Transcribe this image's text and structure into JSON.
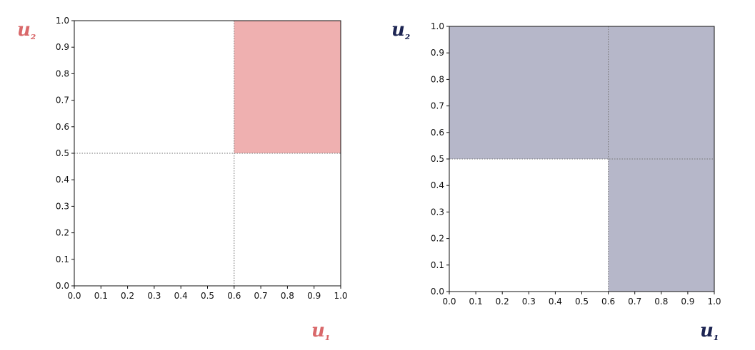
{
  "chart_data": [
    {
      "type": "area",
      "xlabel": "u₁",
      "ylabel": "u₂",
      "xlim": [
        0.0,
        1.0
      ],
      "ylim": [
        0.0,
        1.0
      ],
      "xticks": [
        "0.0",
        "0.1",
        "0.2",
        "0.3",
        "0.4",
        "0.5",
        "0.6",
        "0.7",
        "0.8",
        "0.9",
        "1.0"
      ],
      "yticks": [
        "0.0",
        "0.1",
        "0.2",
        "0.3",
        "0.4",
        "0.5",
        "0.6",
        "0.7",
        "0.8",
        "0.9",
        "1.0"
      ],
      "grid": false,
      "reference_lines": {
        "x": 0.6,
        "y": 0.5,
        "style": "dotted"
      },
      "shaded_regions": [
        {
          "x": [
            0.6,
            1.0
          ],
          "y": [
            0.5,
            1.0
          ]
        }
      ],
      "fill_color": "#efb0b0",
      "label_color": "#d9686a"
    },
    {
      "type": "area",
      "xlabel": "u₁",
      "ylabel": "u₂",
      "xlim": [
        0.0,
        1.0
      ],
      "ylim": [
        0.0,
        1.0
      ],
      "xticks": [
        "0.0",
        "0.1",
        "0.2",
        "0.3",
        "0.4",
        "0.5",
        "0.6",
        "0.7",
        "0.8",
        "0.9",
        "1.0"
      ],
      "yticks": [
        "0.0",
        "0.1",
        "0.2",
        "0.3",
        "0.4",
        "0.5",
        "0.6",
        "0.7",
        "0.8",
        "0.9",
        "1.0"
      ],
      "grid": false,
      "reference_lines": {
        "x": 0.6,
        "y": 0.5,
        "style": "dotted"
      },
      "shaded_regions": [
        {
          "x": [
            0.0,
            1.0
          ],
          "y": [
            0.5,
            1.0
          ]
        },
        {
          "x": [
            0.6,
            1.0
          ],
          "y": [
            0.0,
            0.5
          ]
        }
      ],
      "fill_color": "#b6b7c9",
      "label_color": "#1c2452"
    }
  ]
}
